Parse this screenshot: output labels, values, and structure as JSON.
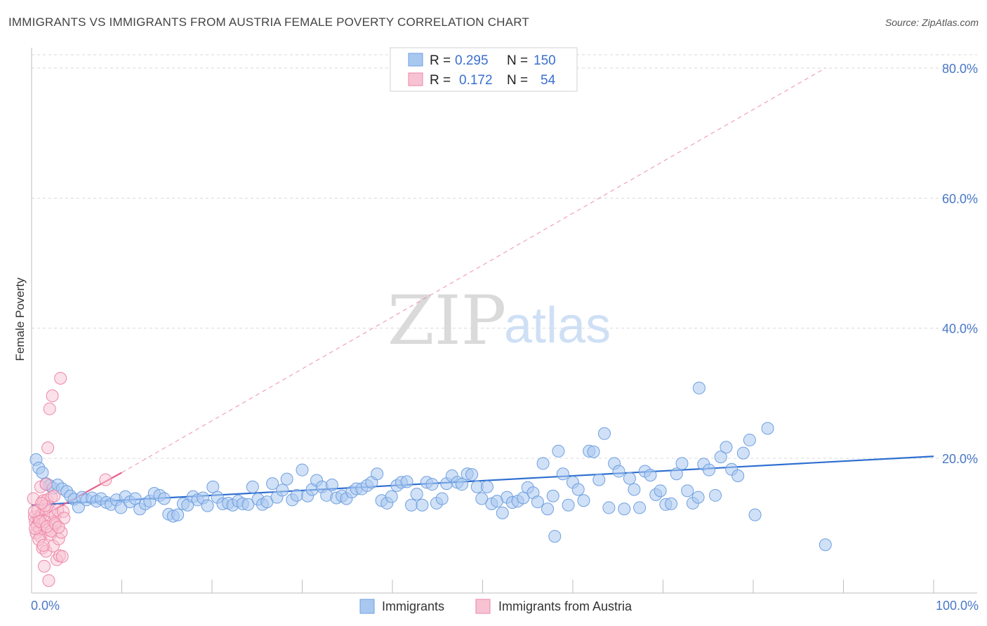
{
  "title": "IMMIGRANTS VS IMMIGRANTS FROM AUSTRIA FEMALE POVERTY CORRELATION CHART",
  "source": "Source: ZipAtlas.com",
  "watermark": {
    "zip": "ZIP",
    "atlas": "atlas"
  },
  "colors": {
    "blue_fill": "#a9c8f0",
    "blue_stroke": "#6f9fe0",
    "blue_line": "#2f6fd1",
    "pink_fill": "#f7c3d3",
    "pink_stroke": "#ee86a7",
    "pink_line": "#e9608a",
    "grid": "#d9d9d9",
    "axis": "#bdbdbd",
    "tick_text": "#4a78c8"
  },
  "legend": {
    "rows": [
      {
        "r_label": "R =",
        "r_value": "0.295",
        "n_label": "N =",
        "n_value": "150",
        "color": "blue"
      },
      {
        "r_label": "R =",
        "r_value": "0.172",
        "n_label": "N =",
        "n_value": "54",
        "color": "pink"
      }
    ]
  },
  "bottom_legend": [
    "Immigrants",
    "Immigrants from Austria"
  ],
  "chart_data": {
    "type": "scatter",
    "title": "IMMIGRANTS VS IMMIGRANTS FROM AUSTRIA FEMALE POVERTY CORRELATION CHART",
    "xlabel": "",
    "ylabel": "Female Poverty",
    "xlim": [
      0,
      100
    ],
    "ylim": [
      0,
      80
    ],
    "x_tick_labels": {
      "min": "0.0%",
      "max": "100.0%"
    },
    "y_tick_labels": [
      "20.0%",
      "40.0%",
      "60.0%",
      "80.0%"
    ],
    "y_ticks": [
      20,
      40,
      60,
      80
    ],
    "grid": true,
    "legend_position": "top-center",
    "series": [
      {
        "name": "Immigrants",
        "color": "blue",
        "trend": {
          "x0": 0,
          "y0": 12.8,
          "x1": 100,
          "y1": 20.3
        },
        "points": [
          [
            0.5,
            19.8
          ],
          [
            0.8,
            18.5
          ],
          [
            1.2,
            17.8
          ],
          [
            1.6,
            16.1
          ],
          [
            2.0,
            15.8
          ],
          [
            2.4,
            15.4
          ],
          [
            2.9,
            15.9
          ],
          [
            3.4,
            15.3
          ],
          [
            3.9,
            14.9
          ],
          [
            4.3,
            14.2
          ],
          [
            4.7,
            13.7
          ],
          [
            5.2,
            12.5
          ],
          [
            5.6,
            14.0
          ],
          [
            6.1,
            13.6
          ],
          [
            6.7,
            13.9
          ],
          [
            7.2,
            13.4
          ],
          [
            7.7,
            13.8
          ],
          [
            8.3,
            13.2
          ],
          [
            8.8,
            12.9
          ],
          [
            9.4,
            13.6
          ],
          [
            9.9,
            12.4
          ],
          [
            10.4,
            14.1
          ],
          [
            10.9,
            13.3
          ],
          [
            11.5,
            13.8
          ],
          [
            12.0,
            12.2
          ],
          [
            12.6,
            13.0
          ],
          [
            13.1,
            13.4
          ],
          [
            13.6,
            14.6
          ],
          [
            14.2,
            14.3
          ],
          [
            14.7,
            13.8
          ],
          [
            15.2,
            11.4
          ],
          [
            15.7,
            11.1
          ],
          [
            16.2,
            11.3
          ],
          [
            16.8,
            13.0
          ],
          [
            17.3,
            12.8
          ],
          [
            17.9,
            14.1
          ],
          [
            18.4,
            13.6
          ],
          [
            19.0,
            13.9
          ],
          [
            19.5,
            12.7
          ],
          [
            20.1,
            15.6
          ],
          [
            20.6,
            14.0
          ],
          [
            21.2,
            13.0
          ],
          [
            21.8,
            13.1
          ],
          [
            22.3,
            12.8
          ],
          [
            22.9,
            13.4
          ],
          [
            23.4,
            13.0
          ],
          [
            24.0,
            12.9
          ],
          [
            24.5,
            15.6
          ],
          [
            25.1,
            13.7
          ],
          [
            25.6,
            12.9
          ],
          [
            26.1,
            13.3
          ],
          [
            26.7,
            16.1
          ],
          [
            27.2,
            14.0
          ],
          [
            27.8,
            15.1
          ],
          [
            28.3,
            16.8
          ],
          [
            28.9,
            13.6
          ],
          [
            29.4,
            14.3
          ],
          [
            30.0,
            18.2
          ],
          [
            30.6,
            14.2
          ],
          [
            31.1,
            15.2
          ],
          [
            31.6,
            16.6
          ],
          [
            32.2,
            15.6
          ],
          [
            32.7,
            14.3
          ],
          [
            33.3,
            15.9
          ],
          [
            33.8,
            13.9
          ],
          [
            34.4,
            14.2
          ],
          [
            34.9,
            13.8
          ],
          [
            35.5,
            14.8
          ],
          [
            36.0,
            15.3
          ],
          [
            36.6,
            15.3
          ],
          [
            37.2,
            15.8
          ],
          [
            37.7,
            16.3
          ],
          [
            38.3,
            17.6
          ],
          [
            38.8,
            13.5
          ],
          [
            39.4,
            13.1
          ],
          [
            39.9,
            14.1
          ],
          [
            40.5,
            15.8
          ],
          [
            41.0,
            16.3
          ],
          [
            41.6,
            16.4
          ],
          [
            42.1,
            12.8
          ],
          [
            42.7,
            14.5
          ],
          [
            43.3,
            12.8
          ],
          [
            43.8,
            16.3
          ],
          [
            44.4,
            16.0
          ],
          [
            44.9,
            13.1
          ],
          [
            45.5,
            13.8
          ],
          [
            46.0,
            16.1
          ],
          [
            46.6,
            17.3
          ],
          [
            47.2,
            16.3
          ],
          [
            47.7,
            16.0
          ],
          [
            48.3,
            17.6
          ],
          [
            48.8,
            17.5
          ],
          [
            49.4,
            15.6
          ],
          [
            49.9,
            13.8
          ],
          [
            50.5,
            15.6
          ],
          [
            51.0,
            13.0
          ],
          [
            51.6,
            13.4
          ],
          [
            52.2,
            11.6
          ],
          [
            52.7,
            14.0
          ],
          [
            53.3,
            13.2
          ],
          [
            53.9,
            13.4
          ],
          [
            54.5,
            13.9
          ],
          [
            55.0,
            15.5
          ],
          [
            55.6,
            14.7
          ],
          [
            56.1,
            13.3
          ],
          [
            56.7,
            19.2
          ],
          [
            57.2,
            12.2
          ],
          [
            57.8,
            14.2
          ],
          [
            58.4,
            21.1
          ],
          [
            58.9,
            17.6
          ],
          [
            59.5,
            12.8
          ],
          [
            60.0,
            16.3
          ],
          [
            60.6,
            15.2
          ],
          [
            61.2,
            13.5
          ],
          [
            61.8,
            21.1
          ],
          [
            62.3,
            21.0
          ],
          [
            62.9,
            16.7
          ],
          [
            63.5,
            23.8
          ],
          [
            64.0,
            12.4
          ],
          [
            64.6,
            19.2
          ],
          [
            65.1,
            18.0
          ],
          [
            65.7,
            12.2
          ],
          [
            66.3,
            16.9
          ],
          [
            66.8,
            15.2
          ],
          [
            67.4,
            12.4
          ],
          [
            68.0,
            18.0
          ],
          [
            68.6,
            17.4
          ],
          [
            69.2,
            14.4
          ],
          [
            69.7,
            15.0
          ],
          [
            70.3,
            12.9
          ],
          [
            70.9,
            13.0
          ],
          [
            71.5,
            17.6
          ],
          [
            72.1,
            19.2
          ],
          [
            72.7,
            15.0
          ],
          [
            73.3,
            13.1
          ],
          [
            73.9,
            14.0
          ],
          [
            74.5,
            19.1
          ],
          [
            75.1,
            18.2
          ],
          [
            75.8,
            14.3
          ],
          [
            76.4,
            20.2
          ],
          [
            77.0,
            21.7
          ],
          [
            77.6,
            18.3
          ],
          [
            78.3,
            17.3
          ],
          [
            78.9,
            20.8
          ],
          [
            79.6,
            22.8
          ],
          [
            80.2,
            11.3
          ],
          [
            81.6,
            24.6
          ],
          [
            74.0,
            30.8
          ],
          [
            58.0,
            8.0
          ],
          [
            88.0,
            6.7
          ]
        ]
      },
      {
        "name": "Immigrants from Austria",
        "color": "pink",
        "trend": {
          "x0": 0,
          "y0": 10.2,
          "x1": 10,
          "y1": 17.8
        },
        "extrapolation": {
          "x0": 10,
          "y0": 17.8,
          "x1": 88,
          "y1": 80
        },
        "points": [
          [
            0.2,
            13.8
          ],
          [
            0.3,
            11.0
          ],
          [
            0.4,
            10.2
          ],
          [
            0.5,
            8.5
          ],
          [
            0.6,
            9.6
          ],
          [
            0.7,
            12.0
          ],
          [
            0.8,
            10.8
          ],
          [
            0.9,
            9.0
          ],
          [
            1.0,
            15.6
          ],
          [
            1.0,
            8.0
          ],
          [
            1.1,
            11.4
          ],
          [
            1.2,
            9.9
          ],
          [
            1.2,
            6.2
          ],
          [
            1.3,
            13.5
          ],
          [
            1.4,
            12.2
          ],
          [
            1.4,
            3.4
          ],
          [
            1.5,
            10.3
          ],
          [
            1.6,
            5.7
          ],
          [
            1.6,
            16.0
          ],
          [
            1.7,
            13.6
          ],
          [
            1.8,
            9.0
          ],
          [
            1.8,
            21.6
          ],
          [
            1.9,
            1.2
          ],
          [
            2.0,
            11.9
          ],
          [
            2.0,
            27.6
          ],
          [
            2.1,
            8.3
          ],
          [
            2.2,
            14.0
          ],
          [
            2.3,
            29.6
          ],
          [
            2.4,
            10.2
          ],
          [
            2.4,
            6.5
          ],
          [
            2.5,
            14.2
          ],
          [
            2.6,
            11.2
          ],
          [
            2.7,
            9.8
          ],
          [
            2.8,
            4.4
          ],
          [
            2.9,
            12.0
          ],
          [
            3.0,
            7.6
          ],
          [
            3.1,
            5.0
          ],
          [
            3.2,
            32.3
          ],
          [
            3.3,
            8.6
          ],
          [
            3.4,
            4.9
          ],
          [
            3.5,
            11.8
          ],
          [
            3.6,
            10.8
          ],
          [
            0.4,
            9.2
          ],
          [
            0.8,
            7.5
          ],
          [
            1.3,
            6.6
          ],
          [
            1.5,
            12.7
          ],
          [
            2.2,
            8.8
          ],
          [
            0.3,
            11.8
          ],
          [
            0.9,
            10.3
          ],
          [
            1.1,
            13.1
          ],
          [
            1.7,
            9.5
          ],
          [
            2.6,
            10.0
          ],
          [
            3.0,
            9.4
          ],
          [
            8.2,
            16.7
          ]
        ]
      }
    ]
  }
}
